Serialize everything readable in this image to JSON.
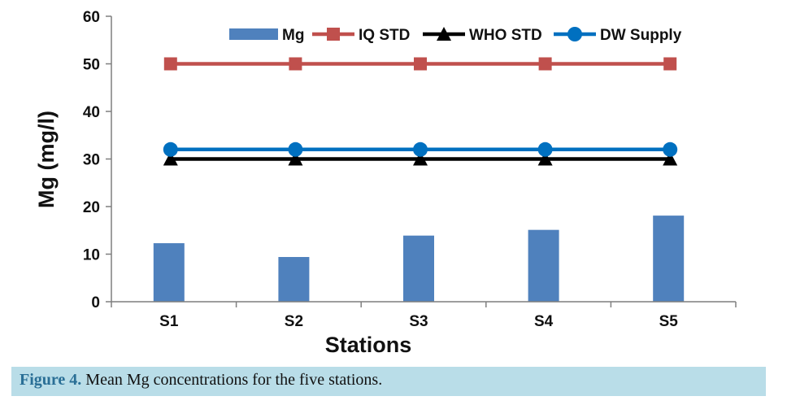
{
  "chart_data": {
    "type": "bar",
    "categories": [
      "S1",
      "S2",
      "S3",
      "S4",
      "S5"
    ],
    "xlabel": "Stations",
    "ylabel": "Mg (mg/l)",
    "ylim": [
      0,
      60
    ],
    "yticks": [
      "0",
      "10",
      "20",
      "30",
      "40",
      "50",
      "60"
    ],
    "grid": false,
    "legend_position": "top",
    "series": [
      {
        "name": "Mg",
        "kind": "bar",
        "color": "#4f81bd",
        "values": [
          12.3,
          9.4,
          13.9,
          15.1,
          18.1
        ]
      },
      {
        "name": "IQ STD",
        "kind": "line",
        "marker": "square",
        "color": "#c0504d",
        "values": [
          50,
          50,
          50,
          50,
          50
        ]
      },
      {
        "name": "WHO STD",
        "kind": "line",
        "marker": "triangle",
        "color": "#000000",
        "values": [
          30,
          30,
          30,
          30,
          30
        ]
      },
      {
        "name": "DW Supply",
        "kind": "line",
        "marker": "circle",
        "color": "#0070c0",
        "values": [
          32,
          32,
          32,
          32,
          32
        ]
      }
    ]
  },
  "caption": {
    "label": "Figure 4.",
    "text": " Mean Mg concentrations for the five stations."
  }
}
